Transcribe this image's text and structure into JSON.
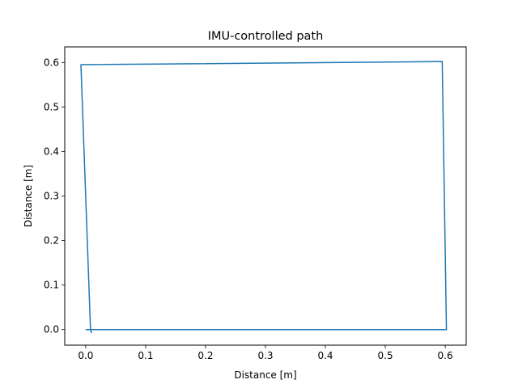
{
  "chart_data": {
    "type": "line",
    "title": "IMU-controlled path",
    "xlabel": "Distance [m]",
    "ylabel": "Distance [m]",
    "xlim": [
      -0.035,
      0.635
    ],
    "ylim": [
      -0.035,
      0.635
    ],
    "xticks": [
      0.0,
      0.1,
      0.2,
      0.3,
      0.4,
      0.5,
      0.6
    ],
    "yticks": [
      0.0,
      0.1,
      0.2,
      0.3,
      0.4,
      0.5,
      0.6
    ],
    "xtick_labels": [
      "0.0",
      "0.1",
      "0.2",
      "0.3",
      "0.4",
      "0.5",
      "0.6"
    ],
    "ytick_labels": [
      "0.0",
      "0.1",
      "0.2",
      "0.3",
      "0.4",
      "0.5",
      "0.6"
    ],
    "grid": false,
    "series": [
      {
        "color": "#1f77b4",
        "x": [
          0.0,
          0.008,
          0.602,
          0.595,
          -0.008,
          0.008,
          0.01
        ],
        "y": [
          0.0,
          0.0,
          0.0,
          0.602,
          0.595,
          0.0,
          -0.008
        ]
      }
    ]
  }
}
